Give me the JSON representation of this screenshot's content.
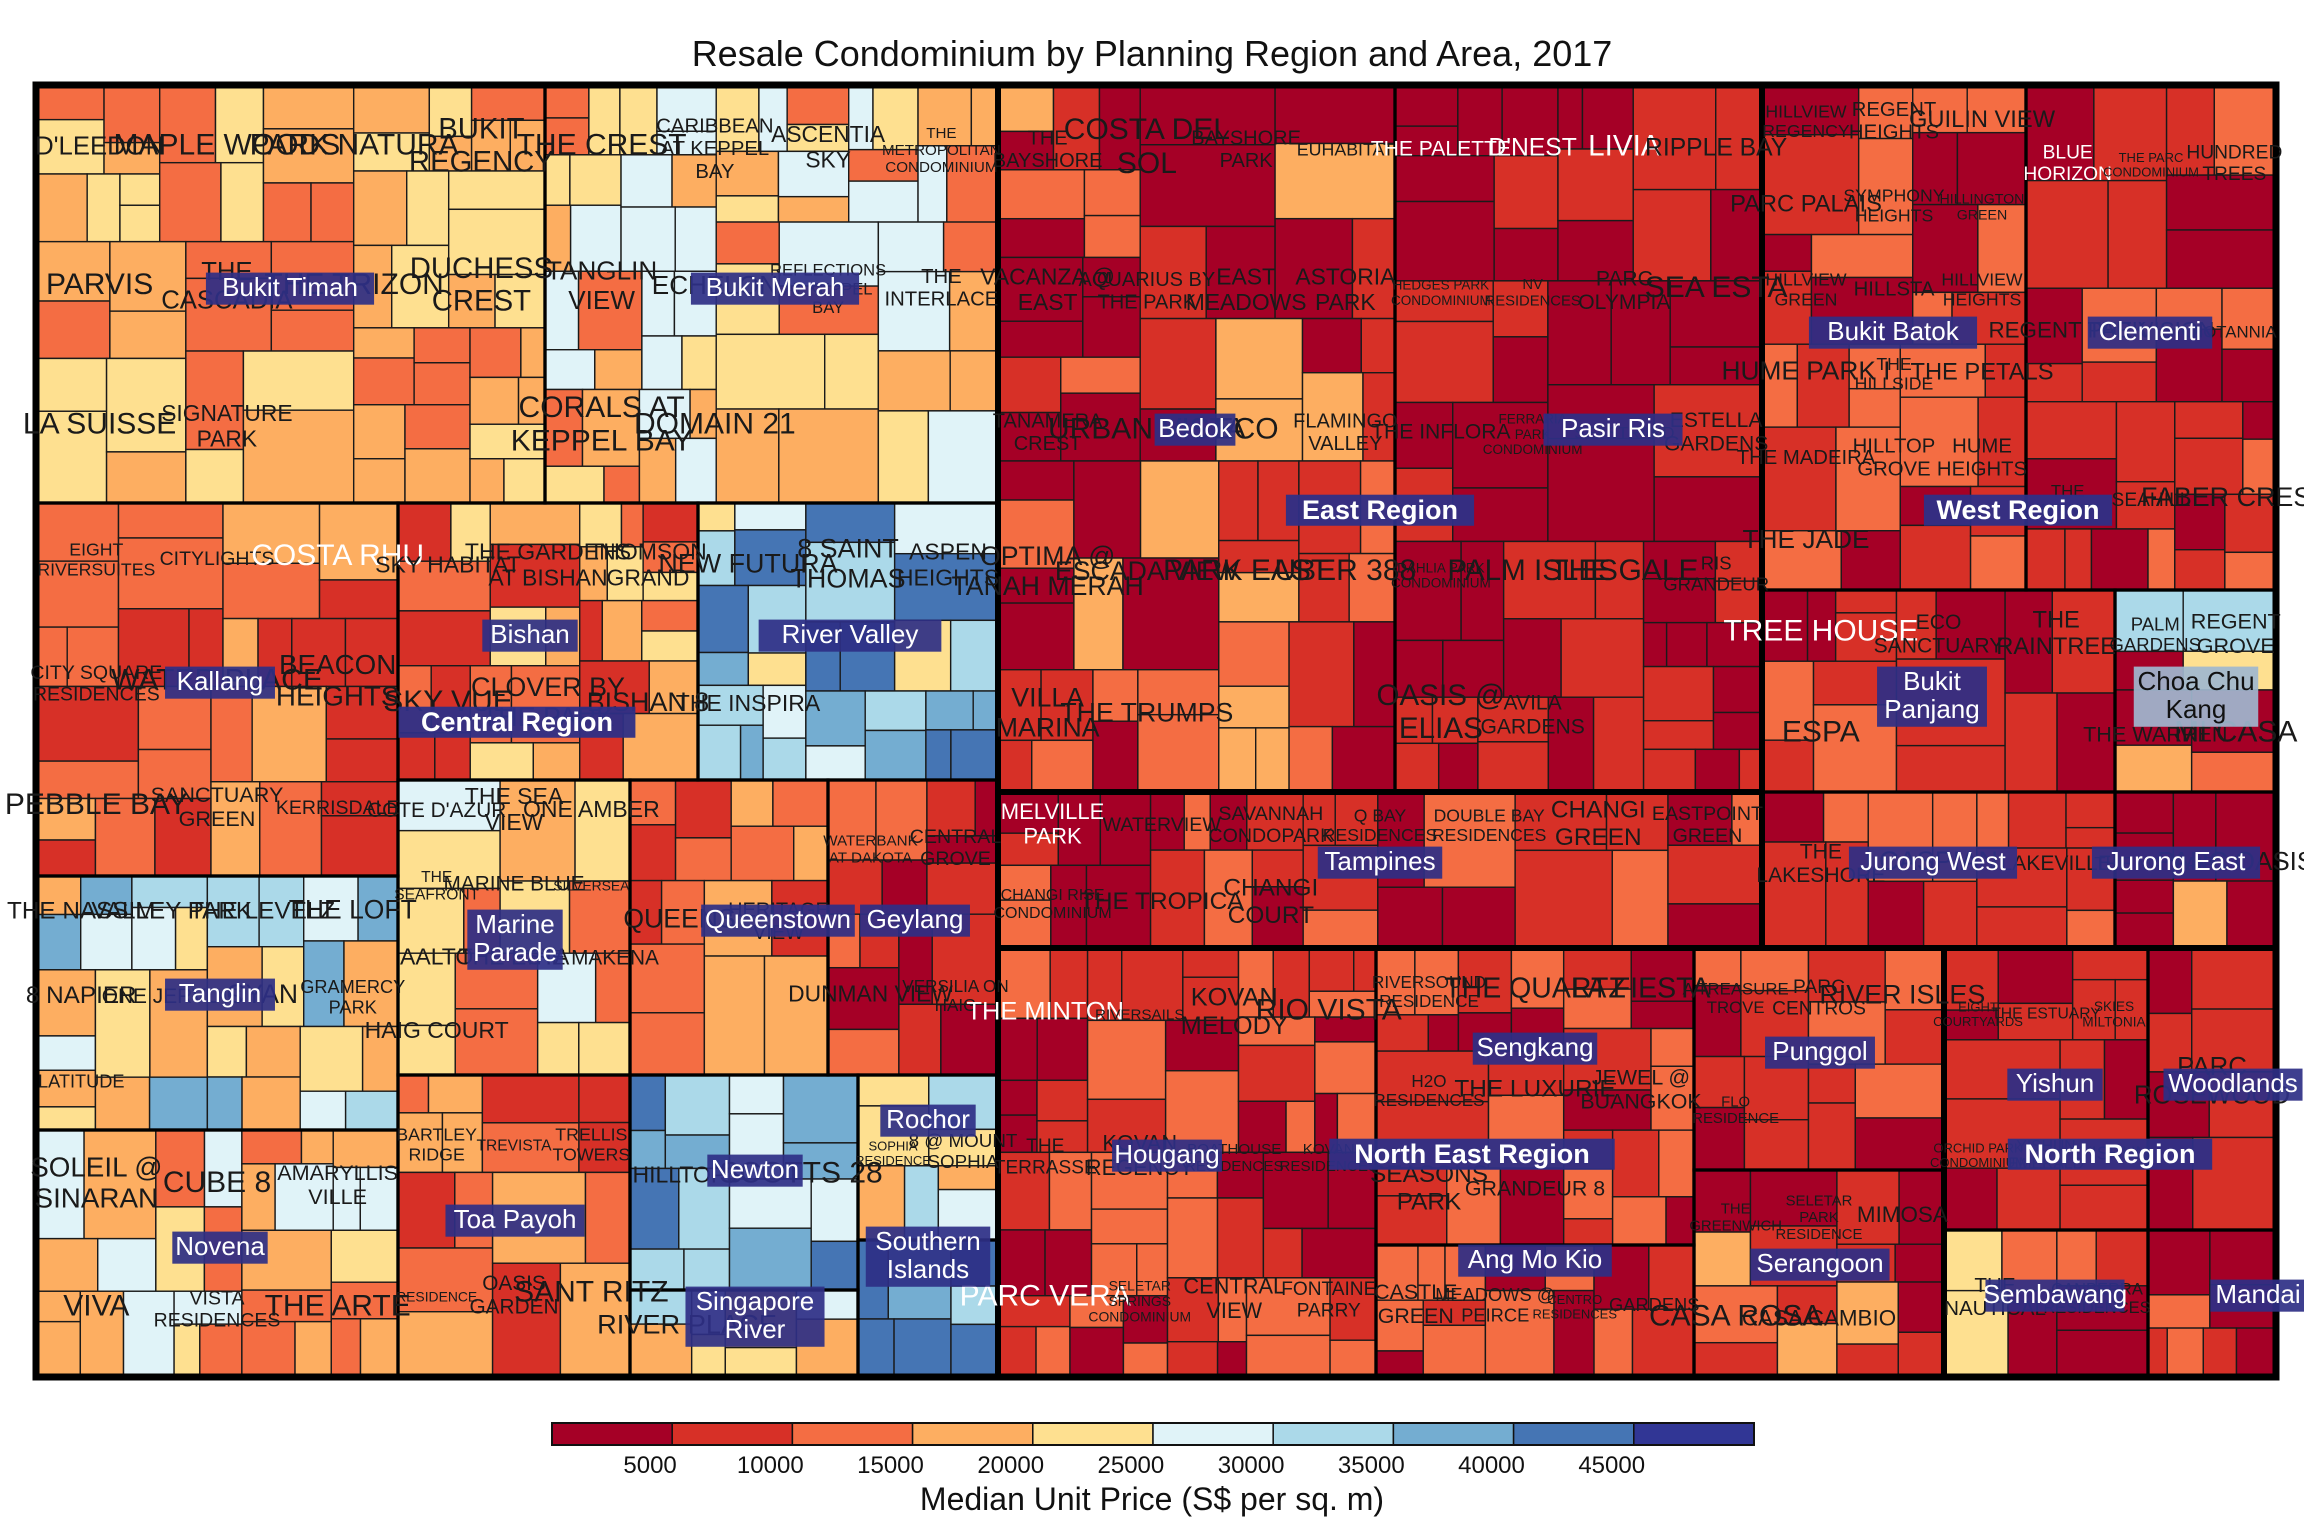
{
  "chart_data": {
    "type": "treemap",
    "title": "Resale Condominium by Planning Region and Area, 2017",
    "legend": {
      "title": "Median Unit Price (S$ per sq. m)",
      "ticks": [
        "5000",
        "10000",
        "15000",
        "20000",
        "25000",
        "30000",
        "35000",
        "40000",
        "45000"
      ],
      "colors": [
        "#a50026",
        "#d73027",
        "#f46d43",
        "#fdae61",
        "#fee090",
        "#e0f3f8",
        "#abd9e9",
        "#74add1",
        "#4575b4",
        "#313695"
      ],
      "placement": "bottom"
    },
    "regions": [
      {
        "name": "Central Region",
        "areas": [
          {
            "name": "Bukit Timah",
            "condos": [
              "D'LEEDON",
              "MAPLE WOODS",
              "PARK NATURA",
              "BUKIT REGENCY",
              "PARVIS",
              "THE CASCADIA",
              "THE TRIZON",
              "DUCHESS CREST",
              "LA SUISSE",
              "SIGNATURE PARK"
            ]
          },
          {
            "name": "Bukit Merah",
            "condos": [
              "THE CREST",
              "CARIBBEAN AT KEPPEL BAY",
              "ASCENTIA SKY",
              "THE METROPOLITAN CONDOMINIUM",
              "TANGLIN VIEW",
              "ECHELON",
              "REFLECTIONS AT KEPPEL BAY",
              "THE INTERLACE",
              "CORALS AT KEPPEL BAY",
              "DOMAIN 21"
            ]
          },
          {
            "name": "Kallang",
            "condos": [
              "EIGHT RIVERSUITES",
              "CITYLIGHTS",
              "COSTA RHU",
              "CITY SQUARE RESIDENCES",
              "WATER PLACE",
              "BEACON HEIGHTS",
              "PEBBLE BAY",
              "SANCTUARY GREEN",
              "KERRISDALE"
            ]
          },
          {
            "name": "Bishan",
            "condos": [
              "SKY HABITAT",
              "THE GARDENS AT BISHAN",
              "THOMSON GRAND",
              "SKY VUE",
              "CLOVER BY THE PARK",
              "BISHAN 8"
            ]
          },
          {
            "name": "River Valley",
            "condos": [
              "NEW FUTURA",
              "8 SAINT THOMAS",
              "ASPEN HEIGHTS",
              "THE INSPIRA"
            ]
          },
          {
            "name": "Tanglin",
            "condos": [
              "THE NASSIM",
              "VALLEY PARK",
              "THE LEVELZ",
              "THE LOFT",
              "8 NAPIER",
              "ONE JERVOIS",
              "CYAN",
              "GRAMERCY PARK",
              "LATITUDE"
            ]
          },
          {
            "name": "Marine Parade",
            "condos": [
              "COTE D'AZUR",
              "THE SEA VIEW",
              "ONE AMBER",
              "THE SEAFRONT",
              "MARINE BLUE",
              "SILVERSEA",
              "AALTO",
              "THE ESTA",
              "THE MAKENA",
              "HAIG COURT"
            ]
          },
          {
            "name": "Queenstown",
            "condos": [
              "QUEENS",
              "HERITAGE VIEW"
            ]
          },
          {
            "name": "Geylang",
            "condos": [
              "WATERBANK AT DAKOTA",
              "CENTRAL GROVE",
              "DUNMAN VIEW",
              "VERSILIA ON HAIG"
            ]
          },
          {
            "name": "Novena",
            "condos": [
              "SOLEIL @ SINARAN",
              "CUBE 8",
              "AMARYLLIS VILLE",
              "VIVA",
              "VISTA RESIDENCES",
              "THE ARTE"
            ]
          },
          {
            "name": "Toa Payoh",
            "condos": [
              "BARTLEY RIDGE",
              "TREVISTA",
              "TRELLIS TOWERS",
              "RESIDENCE",
              "OASIS GARDEN",
              "SANT RITZ"
            ]
          },
          {
            "name": "Newton",
            "condos": [
              "HILLTOPS",
              "SCOTTS 28"
            ]
          },
          {
            "name": "Rochor",
            "condos": [
              "SOPHIA RESIDENCE",
              "8 @ MOUNT SOPHIA"
            ]
          },
          {
            "name": "Southern Islands",
            "condos": []
          },
          {
            "name": "Singapore River",
            "condos": [
              "RIVER PLACE"
            ]
          }
        ]
      },
      {
        "name": "East Region",
        "areas": [
          {
            "name": "Bedok",
            "condos": [
              "THE BAYSHORE",
              "COSTA DEL SOL",
              "BAYSHORE PARK",
              "EUHABITAT",
              "VACANZA @ EAST",
              "AQUARIUS BY THE PARK",
              "EAST MEADOWS",
              "ASTORIA PARK",
              "TANAMERA CREST",
              "URBAN VISTA",
              "ECO",
              "FLAMINGO VALLEY",
              "OPTIMA @ TANAH MERAH",
              "ESCADA VIEW",
              "PARK EAST",
              "UBER 388",
              "VILLA MARINA",
              "THE TRUMPS"
            ]
          },
          {
            "name": "Pasir Ris",
            "condos": [
              "THE PALETTE",
              "D'NEST",
              "LIVIA",
              "RIPPLE BAY",
              "HEDGES PARK CONDOMINIUM",
              "NV RESIDENCES",
              "PARC OLYMPIA",
              "SEA ESTA",
              "THE INFLORA",
              "FERRARIA PARK CONDOMINIUM",
              "SEASTRAND",
              "ESTELLA GARDENS",
              "DAHLIA PARK CONDOMINIUM",
              "PALM ISLES",
              "THE GALE",
              "RIS GRANDEUR",
              "OASIS @ ELIAS",
              "AVILA GARDENS"
            ]
          },
          {
            "name": "Tampines",
            "condos": [
              "MELVILLE PARK",
              "WATERVIEW",
              "SAVANNAH CONDOPARK",
              "Q BAY RESIDENCES",
              "DOUBLE BAY RESIDENCES",
              "CHANGI GREEN",
              "EASTPOINT GREEN",
              "CHANGI RISE CONDOMINIUM",
              "THE TROPICA",
              "CHANGI COURT"
            ]
          }
        ]
      },
      {
        "name": "West Region",
        "areas": [
          {
            "name": "Bukit Batok",
            "condos": [
              "HILLVIEW REGENCY",
              "REGENT HEIGHTS",
              "GUILIN VIEW",
              "PARC PALAIS",
              "SYMPHONY HEIGHTS",
              "HILLINGTON GREEN",
              "HILLVIEW GREEN",
              "HILLSTA",
              "HILLVIEW HEIGHTS",
              "HUME PARK I",
              "THE HILLSIDE",
              "THE PETALS",
              "THE MADEIRA",
              "HILLTOP GROVE",
              "HUME HEIGHTS",
              "THE JADE"
            ]
          },
          {
            "name": "Clementi",
            "condos": [
              "BLUE HORIZON",
              "THE PARC CONDOMINIUM",
              "HUNDRED TREES",
              "REGENT PARK",
              "THE VISION",
              "BOTANNIA",
              "THE INFINITI",
              "SEAHILL",
              "FABER CREST"
            ]
          },
          {
            "name": "Bukit Panjang",
            "condos": [
              "TREE HOUSE",
              "ECO SANCTUARY",
              "THE RAINTREE",
              "ESPA"
            ]
          },
          {
            "name": "Choa Chu Kang",
            "condos": [
              "PALM GARDENS",
              "REGENT GROVE",
              "THE WARREN",
              "MI CASA"
            ]
          },
          {
            "name": "Jurong West",
            "condos": [
              "THE LAKESHORE",
              "CASPIAN",
              "LAKEVILLE"
            ]
          },
          {
            "name": "Jurong East",
            "condos": [
              "THE MAYFAIR",
              "PARC OASIS"
            ]
          }
        ]
      },
      {
        "name": "North East Region",
        "areas": [
          {
            "name": "Hougang",
            "condos": [
              "THE MINTON",
              "RIVERSAILS",
              "KOVAN MELODY",
              "RIO VISTA",
              "THE TERRASSE",
              "KOVAN REGENCY",
              "BOATHOUSE RESIDENCES",
              "KOVAN RESIDENCES",
              "PARC VERA",
              "SELETAR SPRINGS CONDOMINIUM",
              "CENTRAL VIEW",
              "FONTAINE PARRY"
            ]
          },
          {
            "name": "Sengkang",
            "condos": [
              "RIVERSOUND RESIDENCE",
              "THE QUARTZ",
              "LA FIESTA",
              "H2O RESIDENCES",
              "THE LUXURIE",
              "JEWEL @ BUANGKOK",
              "SEASONS PARK",
              "GRANDEUR 8"
            ]
          },
          {
            "name": "Ang Mo Kio",
            "condos": [
              "CASTLE GREEN",
              "MEADOWS @ PEIRCE",
              "CENTRO RESIDENCES",
              "GARDENS"
            ]
          },
          {
            "name": "Punggol",
            "condos": [
              "A TREASURE TROVE",
              "PARC CENTROS",
              "RIVER ISLES",
              "FLO RESIDENCE"
            ]
          },
          {
            "name": "Serangoon",
            "condos": [
              "THE GREENWICH",
              "SELETAR PARK RESIDENCE",
              "MIMOSA",
              "CASA ROSA",
              "CASA CAMBIO"
            ]
          }
        ]
      },
      {
        "name": "North Region",
        "areas": [
          {
            "name": "Yishun",
            "condos": [
              "EIGHT COURTYARDS",
              "THE ESTUARY",
              "SKIES MILTONIA",
              "ORCHID PARK CONDOMINIUM",
              "YISHUN EMERALD",
              "YISHUN"
            ]
          },
          {
            "name": "Woodlands",
            "condos": [
              "PARC ROSEWOOD"
            ]
          },
          {
            "name": "Sembawang",
            "condos": [
              "THE NAUTICAL",
              "CANBERRA RESIDENCES"
            ]
          },
          {
            "name": "Mandai",
            "condos": []
          }
        ]
      }
    ]
  },
  "tile_text": [
    "D'LEEDON",
    "MAPLE",
    "WOODS",
    "PARK",
    "NATURA",
    "BUKIT",
    "REGENCY",
    "PARVIS",
    "THE",
    "CASCADIA",
    "TRIZON",
    "DUCHESS",
    "CREST",
    "LA",
    "SUISSE",
    "SIGNATURE",
    "CREST",
    "CARIBBEAN",
    "AT KEPPEL",
    "BAY",
    "ASCENTIA",
    "SKY",
    "METROPOLITAN",
    "CONDOMINIUM",
    "TANGLIN",
    "VIEW",
    "ECHELON",
    "REFLECTIONS",
    "AT KEPPEL",
    "INTERLACE",
    "CORALS AT",
    "KEPPEL BAY",
    "DOMAIN",
    "21",
    "EIGHT",
    "RIVERSUITES",
    "CITYLIGHTS",
    "COSTA",
    "RHU",
    "CITY",
    "SQUARE",
    "RESIDENCES",
    "WATER",
    "PLACE",
    "BEACON",
    "HEIGHTS",
    "PEBBLE",
    "SANCTUARY",
    "GREEN",
    "KERRISDALE",
    "SKY",
    "HABITAT",
    "GARDENS",
    "AT",
    "BISHAN",
    "THOMSON",
    "GRAND",
    "VUE",
    "CLOVER",
    "BY THE",
    "8",
    "NEW",
    "FUTURA",
    "8 SAINT",
    "THOMAS",
    "ASPEN",
    "INSPIRA",
    "NASSIM",
    "VALLEY",
    "LEVELZ",
    "LOFT",
    "NAPIER",
    "ONE",
    "JERVOIS",
    "CYAN",
    "GRAMERCY",
    "LATITUDE",
    "COTE",
    "D'AZUR",
    "SEA",
    "SEAFRONT",
    "MARINE",
    "BLUE",
    "SILVERSEA",
    "AALTO",
    "ESTA",
    "MAKENA",
    "HAIG",
    "COURT",
    "QUEENS",
    "HERITAGE",
    "WATERBANK",
    "AT DAKOTA",
    "CENTRAL",
    "DUNMAN",
    "VERSILIA",
    "ON HAIG",
    "SOLEIL",
    "@",
    "SINARAN",
    "CUBE",
    "AMARYLLIS",
    "VILLE",
    "VIVA",
    "VISTA",
    "ARTE",
    "BARTLEY",
    "RIDGE",
    "TREVISTA",
    "TRELLIS",
    "TOWERS",
    "RESIDENCE",
    "OASIS",
    "GARDEN",
    "SANT",
    "RITZ",
    "HILLTOPS",
    "SCOTTS",
    "28",
    "SOPHIA",
    "8 @ MOUNT",
    "RIVER",
    "BAYSHORE",
    "DEL SOL",
    "EUHABITAT",
    "VACANZA",
    "@ EAST",
    "AQUARIUS",
    "EAST",
    "MEADOWS",
    "ASTORIA",
    "TANAMERA",
    "URBAN",
    "ECO",
    "FLAMINGO",
    "OPTIMA @",
    "TANAH",
    "MERAH",
    "ESCADA",
    "UBER",
    "388",
    "VILLA",
    "MARINA",
    "TRUMPS",
    "PALETTE",
    "D'NEST",
    "LIVIA",
    "RIPPLE",
    "HEDGES PARK",
    "NV",
    "PARC",
    "OLYMPIA",
    "INFLORA",
    "FERRARIA",
    "SEASTRAND",
    "ESTELLA",
    "DAHLIA PARK",
    "PALM",
    "ISLES",
    "GALE",
    "RIS",
    "GRANDEUR",
    "ELIAS",
    "AVILA",
    "GARDENS",
    "MELVILLE",
    "WATERVIEW",
    "SAVANNAH",
    "CONDOPARK",
    "Q BAY",
    "DOUBLE BAY",
    "CHANGI",
    "EASTPOINT",
    "CHANGI RISE",
    "TROPICA",
    "HILLVIEW",
    "REGENT",
    "GUILIN",
    "PALAIS",
    "SYMPHONY",
    "HILLINGTON",
    "HILLSTA",
    "HUME",
    "PARK I",
    "HILLSIDE",
    "PETALS",
    "MADEIRA",
    "HILLTOP",
    "GROVE",
    "JADE",
    "BLUE",
    "HORIZON",
    "THE PARC",
    "HUNDRED",
    "TREES",
    "VISION",
    "BOTANNIA",
    "INFINITI",
    "SEAHILL",
    "FABER",
    "TREE",
    "HOUSE",
    "SANCTUARY",
    "RAINTREE",
    "ESPA",
    "WARREN",
    "MI",
    "CASA",
    "LAKESHORE",
    "CASPIAN",
    "LAKEVILLE",
    "MA",
    "P",
    "MINTON",
    "RIVERSAILS",
    "KOVAN",
    "MELODY",
    "RIO",
    "TERRASSE",
    "KOV",
    "BOATHOUSE",
    "SELETAR",
    "SPRINGS",
    "FONTAINE",
    "PARRY",
    "RIVERSOUND",
    "QUARTZ",
    "FIESTA",
    "H2O",
    "LUXURIE",
    "JEWEL @",
    "BUANGKOK",
    "SEASONS",
    "CASTLE",
    "@ PEIRCE",
    "CENTRO",
    "A",
    "TREASURE",
    "TROVE",
    "CENTROS",
    "FLO",
    "GREENWICH",
    "SELET",
    "PAR",
    "MIMOSA",
    "ROSA",
    "CAMBIO",
    "COURTYARDS",
    "ESTUARY",
    "SKIES",
    "MILTONIA",
    "ORCHID PARK",
    "ROSEWOOD",
    "NAUTICAL",
    "CANBERRA",
    "YISHUN",
    "EMERALD",
    "Mandai"
  ]
}
